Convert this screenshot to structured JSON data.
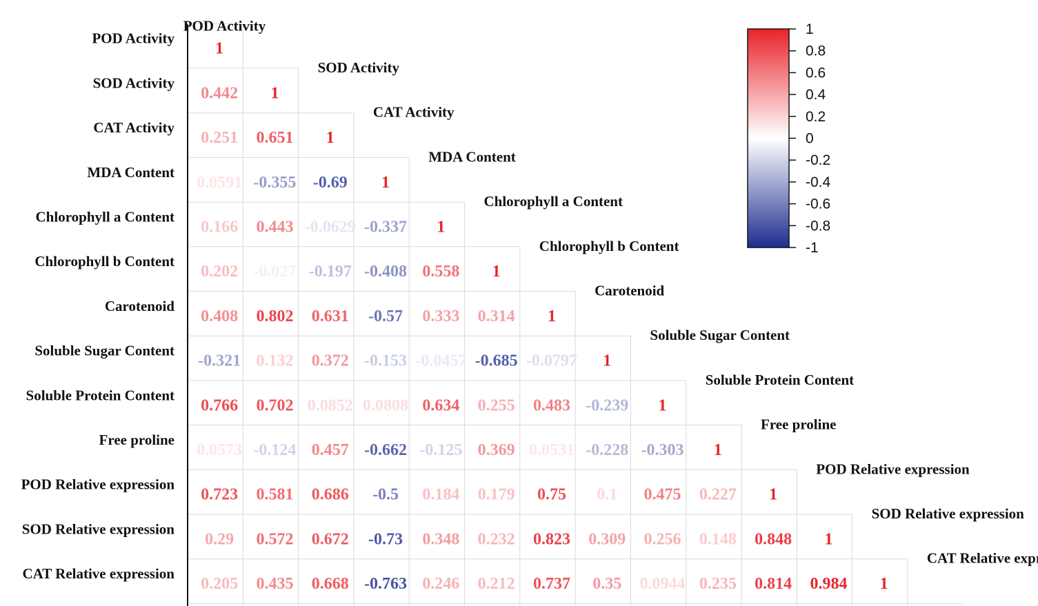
{
  "chart_data": {
    "type": "heatmap",
    "title": "",
    "variables": [
      "POD Activity",
      "SOD Activity",
      "CAT Activity",
      "MDA Content",
      "Chlorophyll a Content",
      "Chlorophyll b Content",
      "Carotenoid",
      "Soluble Sugar Content",
      "Soluble Protein Content",
      "Free proline",
      "POD Relative expression",
      "SOD Relative expression",
      "CAT Relative expression"
    ],
    "matrix_display": [
      [
        "1"
      ],
      [
        "0.442",
        "1"
      ],
      [
        "0.251",
        "0.651",
        "1"
      ],
      [
        "0.0591",
        "-0.355",
        "-0.69",
        "1"
      ],
      [
        "0.166",
        "0.443",
        "-0.0629",
        "-0.337",
        "1"
      ],
      [
        "0.202",
        "-0.027",
        "-0.197",
        "-0.408",
        "0.558",
        "1"
      ],
      [
        "0.408",
        "0.802",
        "0.631",
        "-0.57",
        "0.333",
        "0.314",
        "1"
      ],
      [
        "-0.321",
        "0.132",
        "0.372",
        "-0.153",
        "-0.0457",
        "-0.685",
        "-0.0797",
        "1"
      ],
      [
        "0.766",
        "0.702",
        "0.0852",
        "0.0808",
        "0.634",
        "0.255",
        "0.483",
        "-0.239",
        "1"
      ],
      [
        "0.0573",
        "-0.124",
        "0.457",
        "-0.662",
        "-0.125",
        "0.369",
        "0.0531",
        "-0.228",
        "-0.303",
        "1"
      ],
      [
        "0.723",
        "0.581",
        "0.686",
        "-0.5",
        "0.184",
        "0.179",
        "0.75",
        "0.1",
        "0.475",
        "0.227",
        "1"
      ],
      [
        "0.29",
        "0.572",
        "0.672",
        "-0.73",
        "0.348",
        "0.232",
        "0.823",
        "0.309",
        "0.256",
        "0.148",
        "0.848",
        "1"
      ],
      [
        "0.205",
        "0.435",
        "0.668",
        "-0.763",
        "0.246",
        "0.212",
        "0.737",
        "0.35",
        "0.0944",
        "0.235",
        "0.814",
        "0.984",
        "1"
      ]
    ],
    "colorbar": {
      "range": [
        -1,
        1
      ],
      "ticks": [
        "1",
        "0.8",
        "0.6",
        "0.4",
        "0.2",
        "0",
        "-0.2",
        "-0.4",
        "-0.6",
        "-0.8",
        "-1"
      ],
      "colors": {
        "high": "#e8242b",
        "mid": "#ffffff",
        "low": "#1e2d8f"
      }
    }
  }
}
